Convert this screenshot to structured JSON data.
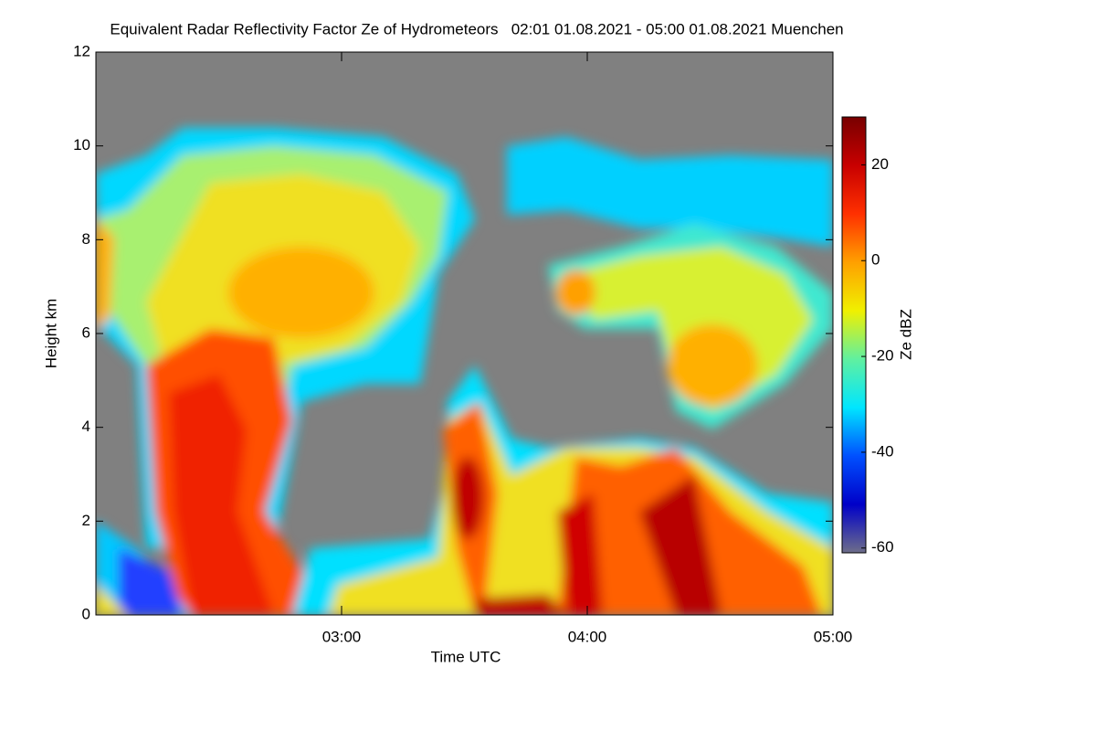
{
  "chart_data": {
    "type": "heatmap",
    "title": "Equivalent Radar Reflectivity Factor Ze of Hydrometeors   02:01 01.08.2021 - 05:00 01.08.2021 Muenchen",
    "xlabel": "Time UTC",
    "ylabel": "Height km",
    "xlim": [
      2.0,
      5.0
    ],
    "xticks": [
      {
        "value": 3,
        "label": "03:00"
      },
      {
        "value": 4,
        "label": "04:00"
      },
      {
        "value": 5,
        "label": "05:00"
      }
    ],
    "ylim": [
      0,
      12
    ],
    "yticks": [
      0,
      2,
      4,
      6,
      8,
      10,
      12
    ],
    "background": "#808080",
    "colorbar": {
      "label": "Ze dBZ",
      "lim": [
        -61,
        30
      ],
      "ticks": [
        -60,
        -40,
        -20,
        0,
        20
      ],
      "colors": [
        "#6e6e8a",
        "#0000c8",
        "#0050ff",
        "#00e6ff",
        "#60f0a0",
        "#f0f000",
        "#ffa000",
        "#ff3000",
        "#c80000",
        "#780000"
      ]
    }
  }
}
